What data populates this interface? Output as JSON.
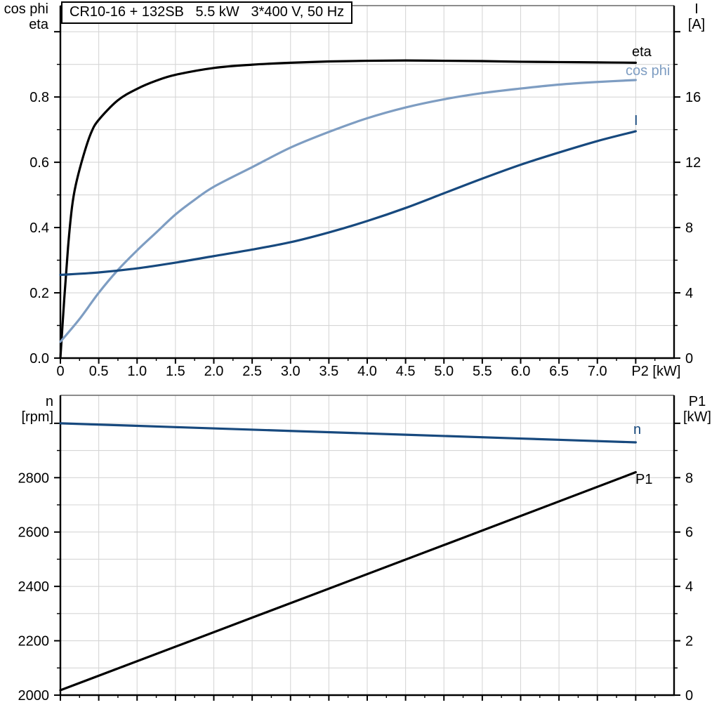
{
  "page": {
    "background": "#ffffff"
  },
  "title_box": "CR10-16 + 132SB   5.5 kW   3*400 V, 50 Hz",
  "colors": {
    "black": "#000000",
    "light_blue": "#7E9DC2",
    "dark_blue": "#17497E",
    "grid": "#D6D6D6",
    "frame": "#000000",
    "frame_top": "#666666"
  },
  "chart_data": [
    {
      "name": "upper-chart",
      "type": "line",
      "title": "CR10-16 + 132SB   5.5 kW   3*400 V, 50 Hz",
      "x_axis": {
        "min": 0,
        "max": 8,
        "major": 0.5,
        "minor": 0.25,
        "labels": [
          "0",
          "0.5",
          "1.0",
          "1.5",
          "2.0",
          "2.5",
          "3.0",
          "3.5",
          "4.0",
          "4.5",
          "5.0",
          "5.5",
          "6.0",
          "6.5",
          "7.0"
        ],
        "unit_label": "P2 [kW]",
        "unit_value": 7.5
      },
      "left_axis": {
        "title_top": "cos phi",
        "title_bottom": "eta",
        "min": 0,
        "max": 1.08,
        "grid_step": 0.1,
        "minor_step": 0.1,
        "tick_values": [
          0,
          0.2,
          0.4,
          0.6,
          0.8,
          1.0
        ],
        "tick_labels": [
          "0.0",
          "0.2",
          "0.4",
          "0.6",
          "0.8",
          ""
        ]
      },
      "right_axis": {
        "title_top": "I",
        "title_bottom": "[A]",
        "min": 0,
        "max": 21.6,
        "minor_step": 2,
        "tick_values": [
          0,
          4,
          8,
          12,
          16,
          20
        ],
        "tick_labels": [
          "0",
          "4",
          "8",
          "12",
          "16",
          ""
        ]
      },
      "series": [
        {
          "name": "eta",
          "label": "eta",
          "axis": "left",
          "color": "black",
          "points": [
            [
              0,
              0
            ],
            [
              0.05,
              0.18
            ],
            [
              0.1,
              0.34
            ],
            [
              0.15,
              0.46
            ],
            [
              0.2,
              0.53
            ],
            [
              0.3,
              0.62
            ],
            [
              0.4,
              0.69
            ],
            [
              0.5,
              0.73
            ],
            [
              0.75,
              0.79
            ],
            [
              1.0,
              0.825
            ],
            [
              1.25,
              0.85
            ],
            [
              1.5,
              0.868
            ],
            [
              2.0,
              0.889
            ],
            [
              2.5,
              0.899
            ],
            [
              3.0,
              0.905
            ],
            [
              3.5,
              0.909
            ],
            [
              4.0,
              0.911
            ],
            [
              4.5,
              0.912
            ],
            [
              5.0,
              0.911
            ],
            [
              5.5,
              0.91
            ],
            [
              6.0,
              0.908
            ],
            [
              6.5,
              0.907
            ],
            [
              7.0,
              0.906
            ],
            [
              7.5,
              0.905
            ]
          ]
        },
        {
          "name": "cos-phi",
          "label": "cos phi",
          "axis": "left",
          "color": "light_blue",
          "points": [
            [
              0,
              0.05
            ],
            [
              0.25,
              0.12
            ],
            [
              0.5,
              0.2
            ],
            [
              0.75,
              0.27
            ],
            [
              1.0,
              0.33
            ],
            [
              1.25,
              0.385
            ],
            [
              1.5,
              0.44
            ],
            [
              1.75,
              0.485
            ],
            [
              2.0,
              0.525
            ],
            [
              2.5,
              0.585
            ],
            [
              3.0,
              0.645
            ],
            [
              3.5,
              0.693
            ],
            [
              4.0,
              0.735
            ],
            [
              4.5,
              0.768
            ],
            [
              5.0,
              0.793
            ],
            [
              5.5,
              0.812
            ],
            [
              6.0,
              0.826
            ],
            [
              6.5,
              0.838
            ],
            [
              7.0,
              0.846
            ],
            [
              7.5,
              0.852
            ]
          ]
        },
        {
          "name": "current",
          "label": "I",
          "axis": "right",
          "color": "dark_blue",
          "points": [
            [
              0,
              5.1
            ],
            [
              0.5,
              5.25
            ],
            [
              1.0,
              5.5
            ],
            [
              1.5,
              5.85
            ],
            [
              2.0,
              6.25
            ],
            [
              2.5,
              6.65
            ],
            [
              3.0,
              7.1
            ],
            [
              3.5,
              7.7
            ],
            [
              4.0,
              8.4
            ],
            [
              4.5,
              9.2
            ],
            [
              5.0,
              10.1
            ],
            [
              5.5,
              11.0
            ],
            [
              6.0,
              11.85
            ],
            [
              6.5,
              12.6
            ],
            [
              7.0,
              13.3
            ],
            [
              7.5,
              13.9
            ]
          ]
        }
      ]
    },
    {
      "name": "lower-chart",
      "type": "line",
      "x_axis": {
        "min": 0,
        "max": 8,
        "major": 0.5,
        "minor": 0.25,
        "labels": []
      },
      "left_axis": {
        "title_top": "n",
        "title_bottom": "[rpm]",
        "min": 2000,
        "max": 3103,
        "grid_step": 100,
        "minor_step": 100,
        "tick_values": [
          2000,
          2200,
          2400,
          2600,
          2800,
          3000
        ],
        "tick_labels": [
          "2000",
          "2200",
          "2400",
          "2600",
          "2800",
          ""
        ]
      },
      "right_axis": {
        "title_top": "P1",
        "title_bottom": "[kW]",
        "min": 0,
        "max": 11.03,
        "minor_step": 1,
        "tick_values": [
          0,
          2,
          4,
          6,
          8,
          10
        ],
        "tick_labels": [
          "0",
          "2",
          "4",
          "6",
          "8",
          ""
        ]
      },
      "series": [
        {
          "name": "speed",
          "label": "n",
          "axis": "left",
          "color": "dark_blue",
          "points": [
            [
              0,
              3000
            ],
            [
              1.5,
              2986
            ],
            [
              3.0,
              2972
            ],
            [
              4.5,
              2958
            ],
            [
              6.0,
              2944
            ],
            [
              7.5,
              2930
            ]
          ]
        },
        {
          "name": "p1",
          "label": "P1",
          "axis": "right",
          "color": "black",
          "points": [
            [
              0,
              0.18
            ],
            [
              2.5,
              2.85
            ],
            [
              5.0,
              5.52
            ],
            [
              7.5,
              8.2
            ]
          ]
        }
      ]
    }
  ]
}
